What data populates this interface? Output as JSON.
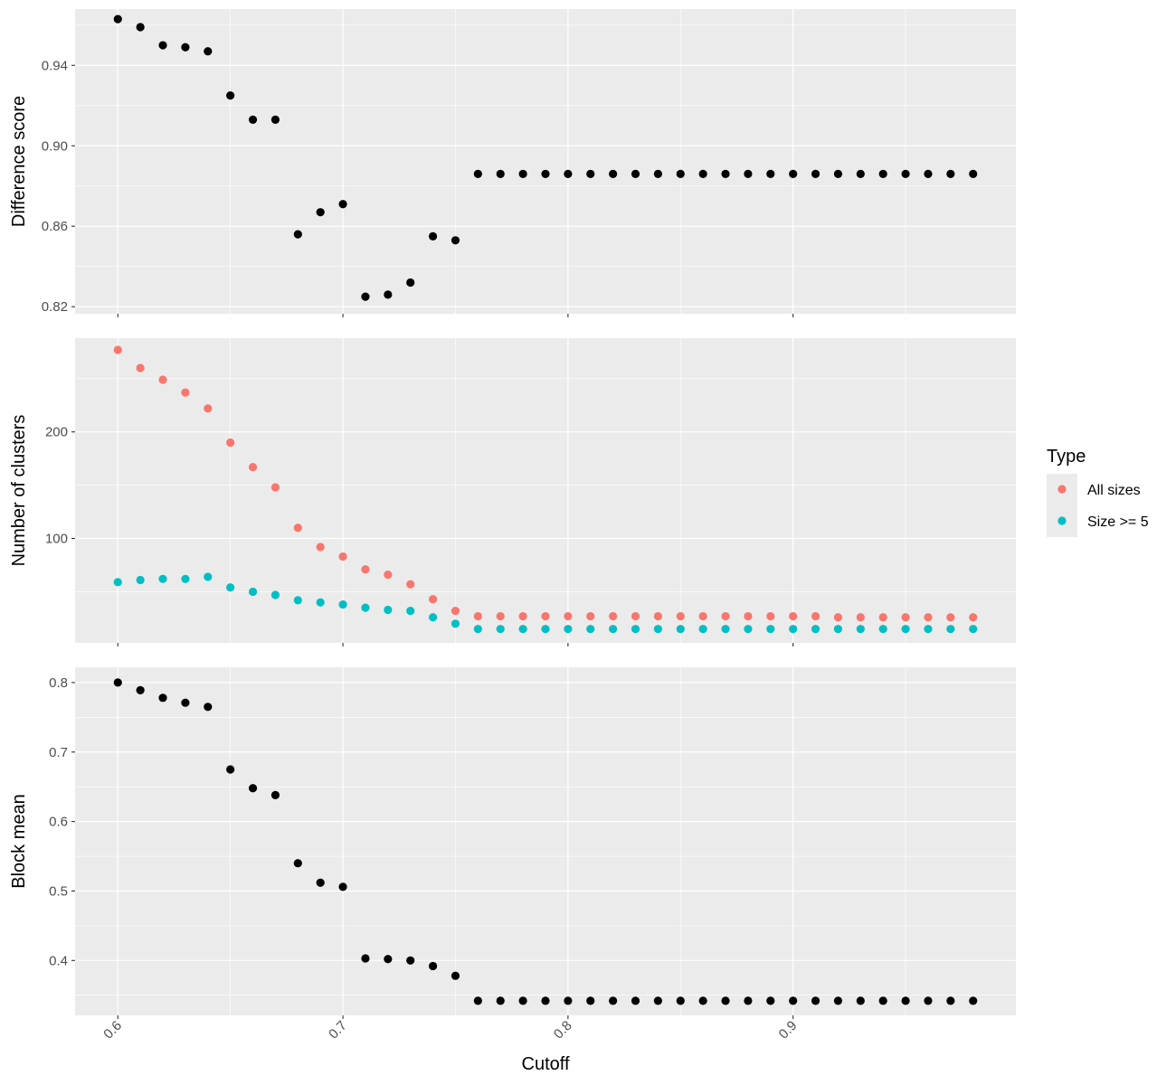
{
  "chart_data": {
    "type": "scatter",
    "xlabel": "Cutoff",
    "x": [
      0.6,
      0.61,
      0.62,
      0.63,
      0.64,
      0.65,
      0.66,
      0.67,
      0.68,
      0.69,
      0.7,
      0.71,
      0.72,
      0.73,
      0.74,
      0.75,
      0.76,
      0.77,
      0.78,
      0.79,
      0.8,
      0.81,
      0.82,
      0.83,
      0.84,
      0.85,
      0.86,
      0.87,
      0.88,
      0.89,
      0.9,
      0.91,
      0.92,
      0.93,
      0.94,
      0.95,
      0.96,
      0.97,
      0.98
    ],
    "xlim": [
      0.581,
      0.999
    ],
    "xticks": [
      0.6,
      0.7,
      0.8,
      0.9
    ],
    "xtick_labels": [
      "0.6",
      "0.7",
      "0.8",
      "0.9"
    ],
    "xtick_rotation": "45°",
    "grid": true,
    "legend_position": "right",
    "legend": {
      "title": "Type",
      "entries": [
        {
          "label": "All sizes",
          "color": "#F8766D"
        },
        {
          "label": "Size >= 5",
          "color": "#00BFC4"
        }
      ]
    },
    "panels": [
      {
        "ylabel": "Difference score",
        "ylim": [
          0.8165,
          0.968
        ],
        "yticks": [
          0.82,
          0.86,
          0.9,
          0.94
        ],
        "ytick_labels": [
          "0.82",
          "0.86",
          "0.90",
          "0.94"
        ],
        "series": [
          {
            "color": "#000000",
            "values": [
              0.963,
              0.959,
              0.95,
              0.949,
              0.947,
              0.925,
              0.913,
              0.913,
              0.856,
              0.867,
              0.871,
              0.825,
              0.826,
              0.832,
              0.855,
              0.853,
              0.886,
              0.886,
              0.886,
              0.886,
              0.886,
              0.886,
              0.886,
              0.886,
              0.886,
              0.886,
              0.886,
              0.886,
              0.886,
              0.886,
              0.886,
              0.886,
              0.886,
              0.886,
              0.886,
              0.886,
              0.886,
              0.886,
              0.886
            ]
          }
        ]
      },
      {
        "ylabel": "Number of clusters",
        "ylim": [
          2,
          288
        ],
        "yticks": [
          100,
          200
        ],
        "ytick_labels": [
          "100",
          "200"
        ],
        "series": [
          {
            "name": "All sizes",
            "color": "#F8766D",
            "values": [
              277,
              260,
              249,
              237,
              222,
              190,
              167,
              148,
              110,
              92,
              83,
              71,
              66,
              57,
              43,
              32,
              27,
              27,
              27,
              27,
              27,
              27,
              27,
              27,
              27,
              27,
              27,
              27,
              27,
              27,
              27,
              27,
              26,
              26,
              26,
              26,
              26,
              26,
              26
            ]
          },
          {
            "name": "Size >= 5",
            "color": "#00BFC4",
            "values": [
              59,
              61,
              62,
              62,
              64,
              54,
              50,
              47,
              42,
              40,
              38,
              35,
              33,
              32,
              26,
              20,
              15,
              15,
              15,
              15,
              15,
              15,
              15,
              15,
              15,
              15,
              15,
              15,
              15,
              15,
              15,
              15,
              15,
              15,
              15,
              15,
              15,
              15,
              15
            ]
          }
        ]
      },
      {
        "ylabel": "Block mean",
        "ylim": [
          0.321,
          0.822
        ],
        "yticks": [
          0.4,
          0.5,
          0.6,
          0.7,
          0.8
        ],
        "ytick_labels": [
          "0.4",
          "0.5",
          "0.6",
          "0.7",
          "0.8"
        ],
        "series": [
          {
            "color": "#000000",
            "values": [
              0.8,
              0.789,
              0.778,
              0.771,
              0.765,
              0.675,
              0.648,
              0.638,
              0.54,
              0.512,
              0.506,
              0.403,
              0.402,
              0.4,
              0.392,
              0.378,
              0.342,
              0.342,
              0.342,
              0.342,
              0.342,
              0.342,
              0.342,
              0.342,
              0.342,
              0.342,
              0.342,
              0.342,
              0.342,
              0.342,
              0.342,
              0.342,
              0.342,
              0.342,
              0.342,
              0.342,
              0.342,
              0.342,
              0.342
            ]
          }
        ]
      }
    ]
  }
}
